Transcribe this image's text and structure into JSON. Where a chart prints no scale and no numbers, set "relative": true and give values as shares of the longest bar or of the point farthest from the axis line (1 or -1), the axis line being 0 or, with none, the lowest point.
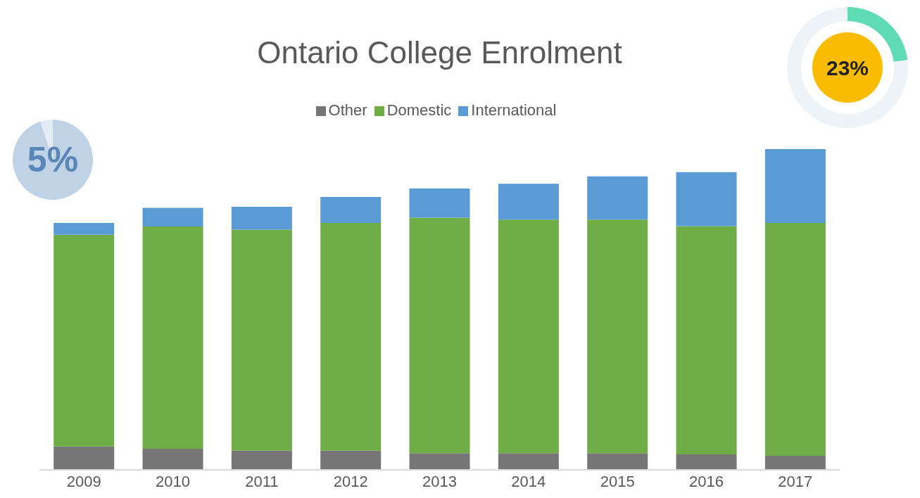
{
  "chart_data": [
    {
      "type": "bar",
      "title": "Ontario College Enrolment",
      "stacked": true,
      "relative": true,
      "legend": "top",
      "grid": false,
      "categories": [
        "2009",
        "2010",
        "2011",
        "2012",
        "2013",
        "2014",
        "2015",
        "2016",
        "2017"
      ],
      "series": [
        {
          "name": "Other",
          "color": "#767676",
          "values": [
            0.073,
            0.066,
            0.06,
            0.06,
            0.052,
            0.052,
            0.052,
            0.048,
            0.044
          ]
        },
        {
          "name": "Domestic",
          "color": "#70ad47",
          "values": [
            0.66,
            0.693,
            0.689,
            0.71,
            0.734,
            0.728,
            0.728,
            0.712,
            0.726
          ]
        },
        {
          "name": "International",
          "color": "#5b9bd5",
          "values": [
            0.037,
            0.058,
            0.071,
            0.081,
            0.091,
            0.112,
            0.135,
            0.168,
            0.23
          ]
        }
      ]
    },
    {
      "type": "pie",
      "categories": [
        null,
        null
      ],
      "values": [
        5,
        95
      ],
      "colors": [
        "#e3ebf4",
        "#c0d3e6"
      ],
      "value_labels": [
        "5%",
        null
      ]
    },
    {
      "type": "donut",
      "categories": [
        null,
        null
      ],
      "values": [
        23,
        77
      ],
      "colors": [
        "#5fdcb3",
        "#eef3f8"
      ],
      "value_labels": [
        "23%",
        null
      ]
    }
  ]
}
